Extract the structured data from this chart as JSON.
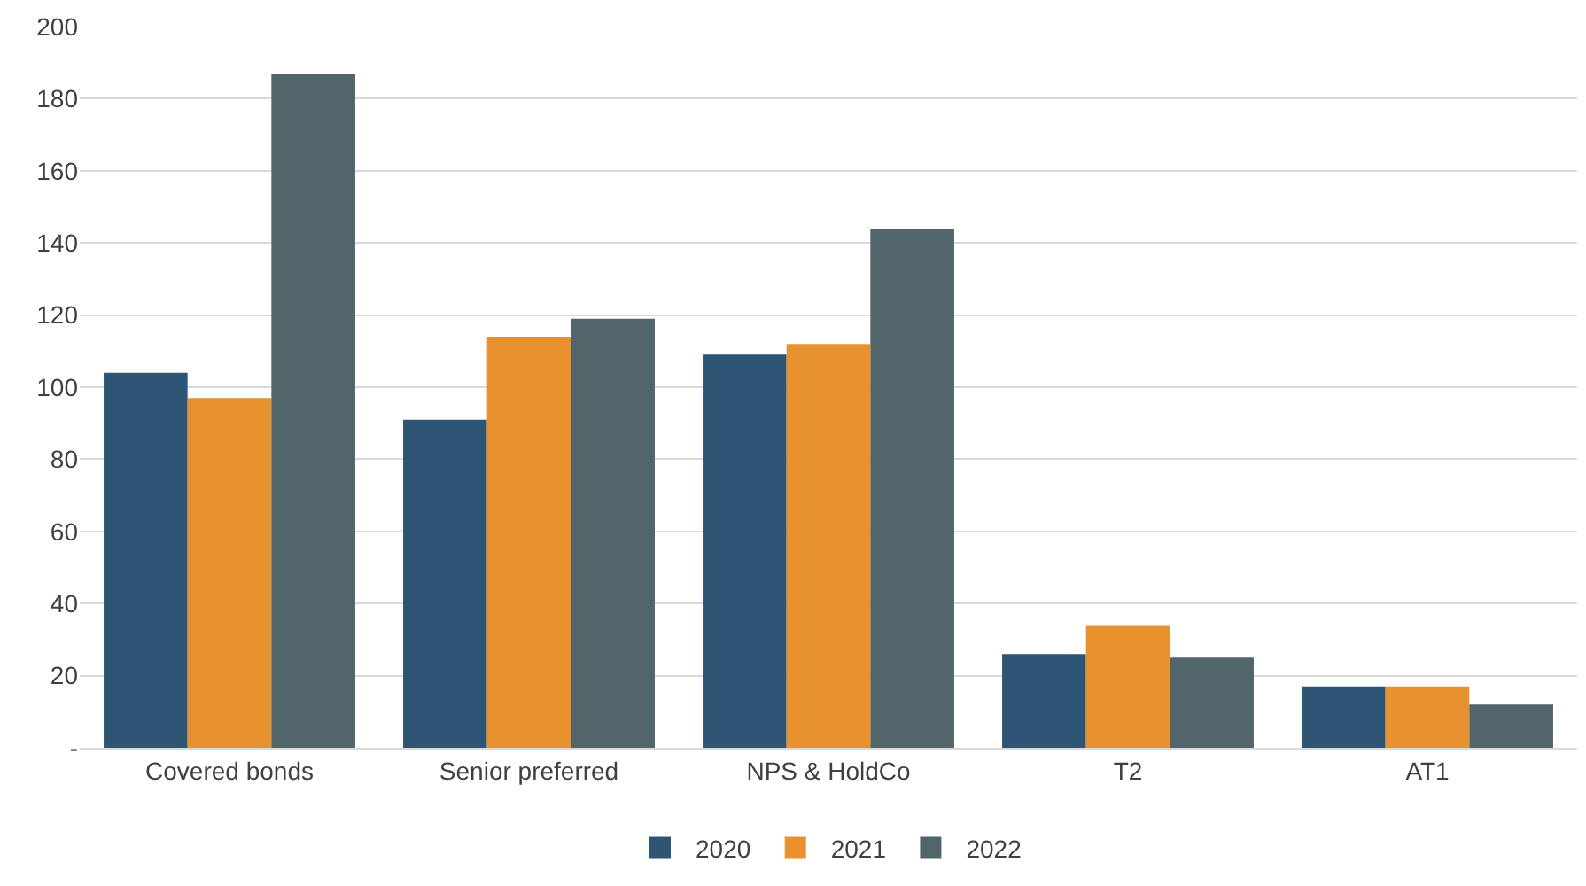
{
  "chart_data": {
    "type": "bar",
    "categories": [
      "Covered bonds",
      "Senior preferred",
      "NPS & HoldCo",
      "T2",
      "AT1"
    ],
    "series": [
      {
        "name": "2020",
        "color": "#2e5573",
        "values": [
          104,
          91,
          109,
          26,
          17
        ]
      },
      {
        "name": "2021",
        "color": "#e8912f",
        "values": [
          97,
          114,
          112,
          34,
          17
        ]
      },
      {
        "name": "2022",
        "color": "#52656b",
        "values": [
          187,
          119,
          144,
          25,
          12
        ]
      }
    ],
    "ylim": [
      0,
      200
    ],
    "yticks": [
      {
        "value": 0,
        "label": "-"
      },
      20,
      40,
      60,
      80,
      100,
      120,
      140,
      160,
      180,
      200
    ],
    "grid": "y",
    "legend": "bottom"
  }
}
